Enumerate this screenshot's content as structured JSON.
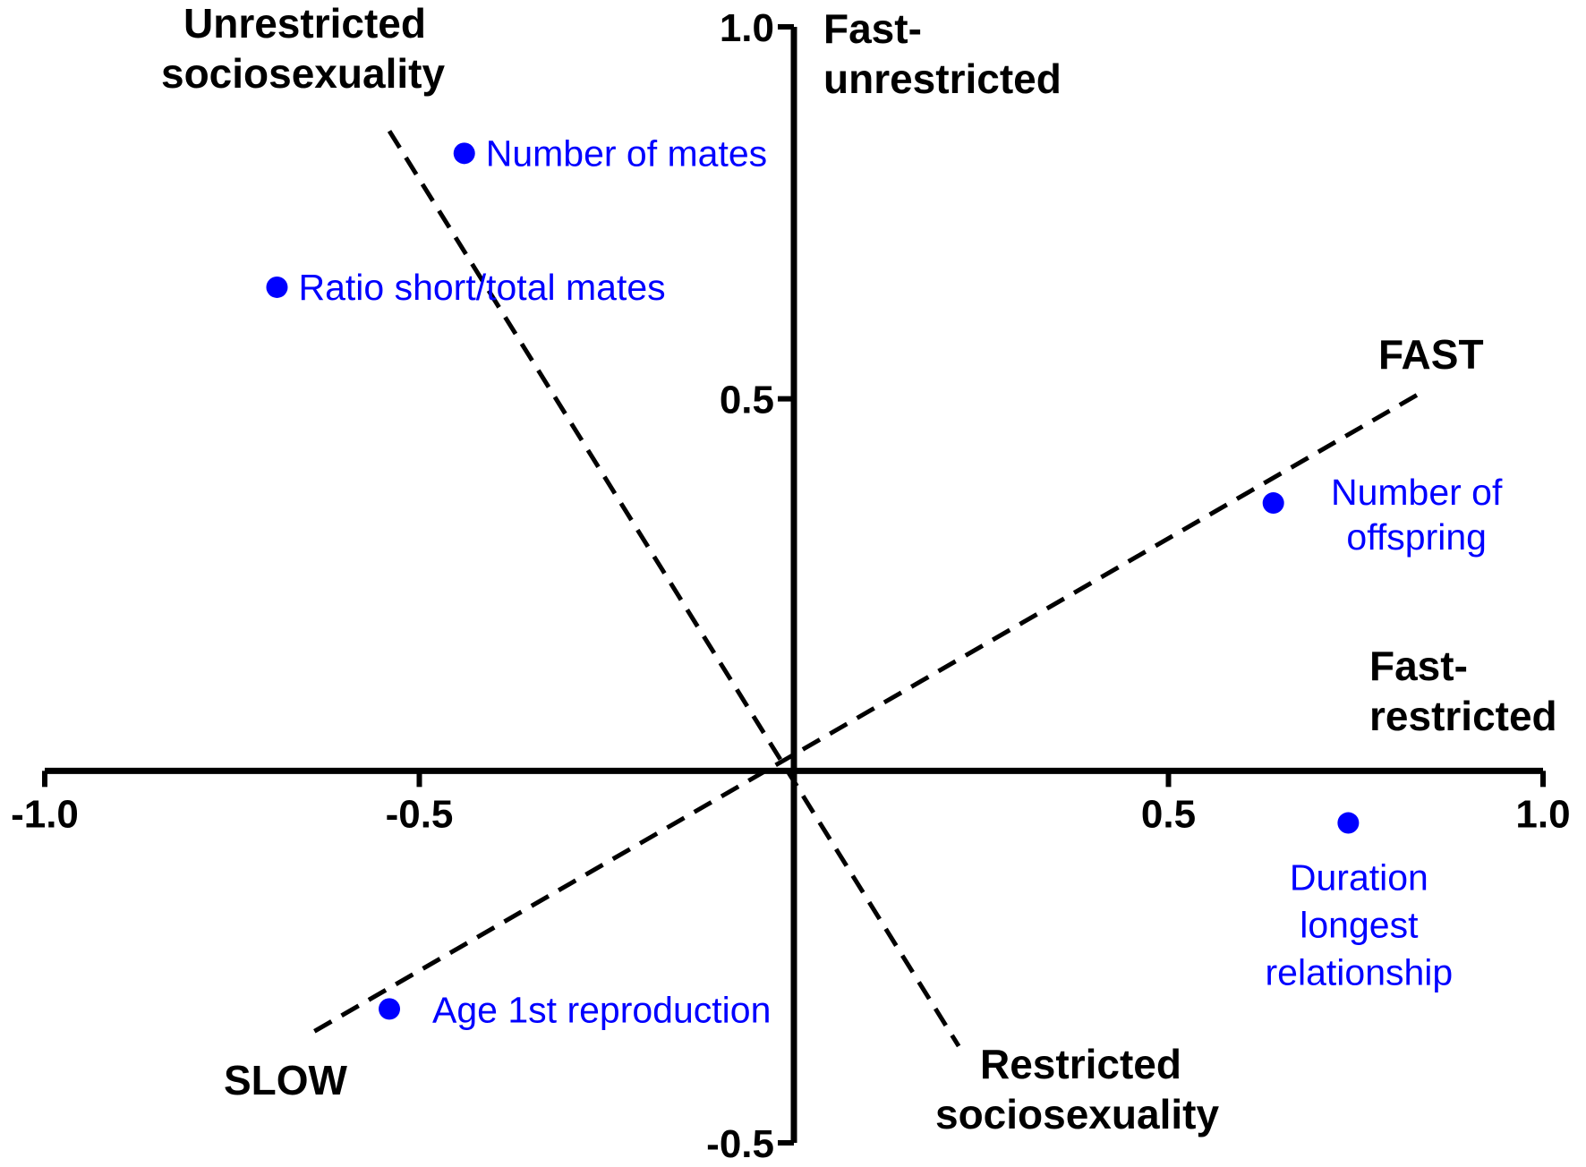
{
  "chart_data": {
    "type": "scatter",
    "xlim": [
      -1.0,
      1.0
    ],
    "ylim": [
      -0.5,
      1.0
    ],
    "grid": false,
    "x_ticks": [
      {
        "value": -1.0,
        "label": "-1.0"
      },
      {
        "value": -0.5,
        "label": "-0.5"
      },
      {
        "value": 0.5,
        "label": "0.5"
      },
      {
        "value": 1.0,
        "label": "1.0"
      }
    ],
    "y_ticks": [
      {
        "value": 1.0,
        "label": "1.0"
      },
      {
        "value": 0.5,
        "label": "0.5"
      },
      {
        "value": -0.5,
        "label": "-0.5"
      }
    ],
    "point_color": "#0000ff",
    "points": [
      {
        "label": "Number of mates",
        "x": -0.44,
        "y": 0.83
      },
      {
        "label": "Ratio short/total mates",
        "x": -0.69,
        "y": 0.65
      },
      {
        "label": "Number of offspring",
        "x": 0.64,
        "y": 0.36
      },
      {
        "label": "Duration longest relationship",
        "x": 0.74,
        "y": -0.07
      },
      {
        "label": "Age 1st reproduction",
        "x": -0.54,
        "y": -0.32
      }
    ],
    "dashed_lines": [
      {
        "name": "Unrestricted-Restricted sociosexuality",
        "from": [
          -0.54,
          0.86
        ],
        "to": [
          0.22,
          -0.37
        ]
      },
      {
        "name": "SLOW-FAST",
        "from": [
          -0.64,
          -0.35
        ],
        "to": [
          0.84,
          0.51
        ]
      }
    ],
    "region_labels": [
      "Unrestricted sociosexuality",
      "Fast-unrestricted",
      "FAST",
      "Fast-restricted",
      "Restricted sociosexuality",
      "SLOW"
    ]
  }
}
